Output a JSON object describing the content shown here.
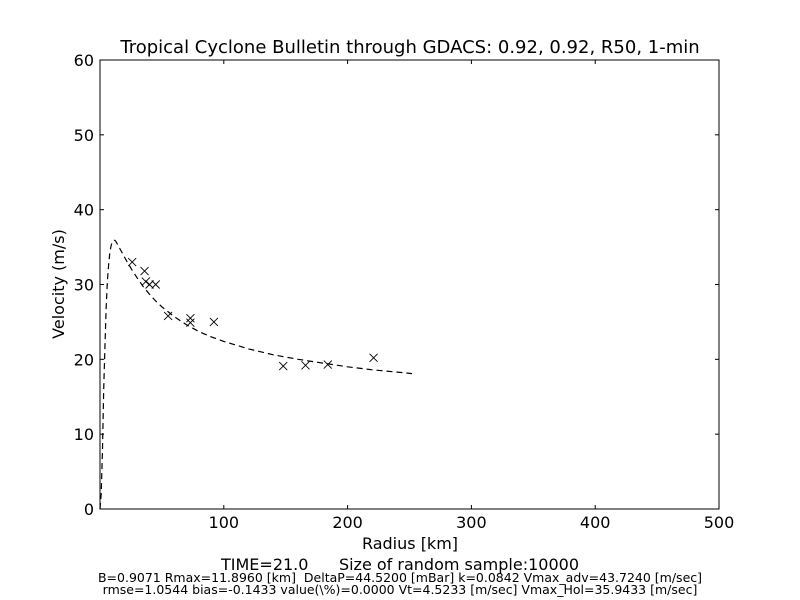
{
  "chart_data": {
    "type": "scatter",
    "title": "Tropical Cyclone Bulletin through GDACS: 0.92, 0.92, R50, 1-min",
    "xlabel": "Radius [km]",
    "ylabel": "Velocity (m/s)",
    "xlim": [
      0,
      500
    ],
    "ylim": [
      0,
      60
    ],
    "xticks": [
      100,
      200,
      300,
      400,
      500
    ],
    "yticks": [
      0,
      10,
      20,
      30,
      40,
      50,
      60
    ],
    "grid": false,
    "series": [
      {
        "marker": "x",
        "color": "#000000",
        "points": [
          [
            26,
            33.0
          ],
          [
            36,
            31.8
          ],
          [
            37,
            30.4
          ],
          [
            40,
            30.0
          ],
          [
            45,
            30.0
          ],
          [
            55,
            25.8
          ],
          [
            73,
            25.5
          ],
          [
            73,
            24.9
          ],
          [
            92,
            25.0
          ],
          [
            148,
            19.1
          ],
          [
            166,
            19.2
          ],
          [
            184,
            19.3
          ],
          [
            221,
            20.2
          ]
        ]
      },
      {
        "style": "dashed-line",
        "color": "#000000",
        "points": [
          [
            0,
            0
          ],
          [
            1,
            2
          ],
          [
            2,
            8
          ],
          [
            3,
            16
          ],
          [
            4,
            22
          ],
          [
            5,
            27
          ],
          [
            6,
            30.5
          ],
          [
            7,
            32.8
          ],
          [
            8,
            34.3
          ],
          [
            9,
            35.2
          ],
          [
            10,
            35.7
          ],
          [
            11,
            35.9
          ],
          [
            12,
            35.9
          ],
          [
            13,
            35.7
          ],
          [
            15,
            35.1
          ],
          [
            18,
            34.2
          ],
          [
            22,
            33.0
          ],
          [
            26,
            31.9
          ],
          [
            30,
            30.9
          ],
          [
            35,
            29.7
          ],
          [
            40,
            28.7
          ],
          [
            45,
            27.8
          ],
          [
            50,
            27.0
          ],
          [
            60,
            25.7
          ],
          [
            70,
            24.6
          ],
          [
            80,
            23.7
          ],
          [
            90,
            23.0
          ],
          [
            100,
            22.4
          ],
          [
            120,
            21.4
          ],
          [
            140,
            20.6
          ],
          [
            160,
            20.0
          ],
          [
            180,
            19.5
          ],
          [
            200,
            19.0
          ],
          [
            220,
            18.6
          ],
          [
            240,
            18.3
          ],
          [
            252,
            18.1
          ]
        ]
      }
    ]
  },
  "footer": {
    "line1": "TIME=21.0      Size of random sample:10000",
    "line2": "B=0.9071 Rmax=11.8960 [km]  DeltaP=44.5200 [mBar] k=0.0842 Vmax_adv=43.7240 [m/sec]",
    "line3": "rmse=1.0544 bias=-0.1433 value(\\%)=0.0000 Vt=4.5233 [m/sec] Vmax_Hol=35.9433 [m/sec]"
  }
}
